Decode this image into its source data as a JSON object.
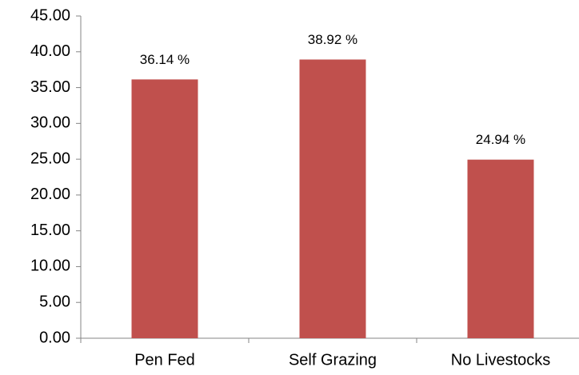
{
  "chart_data": {
    "type": "bar",
    "categories": [
      "Pen Fed",
      "Self Grazing",
      "No Livestocks"
    ],
    "values": [
      36.14,
      38.92,
      24.94
    ],
    "value_labels": [
      "36.14 %",
      "38.92 %",
      "24.94 %"
    ],
    "color": "#c0504d",
    "ylim": [
      0,
      45
    ],
    "yticks": [
      {
        "value": 0,
        "label": "0.00"
      },
      {
        "value": 5,
        "label": "5.00"
      },
      {
        "value": 10,
        "label": "10.00"
      },
      {
        "value": 15,
        "label": "15.00"
      },
      {
        "value": 20,
        "label": "20.00"
      },
      {
        "value": 25,
        "label": "25.00"
      },
      {
        "value": 30,
        "label": "30.00"
      },
      {
        "value": 35,
        "label": "35.00"
      },
      {
        "value": 40,
        "label": "40.00"
      },
      {
        "value": 45,
        "label": "45.00"
      }
    ],
    "grid": false
  }
}
